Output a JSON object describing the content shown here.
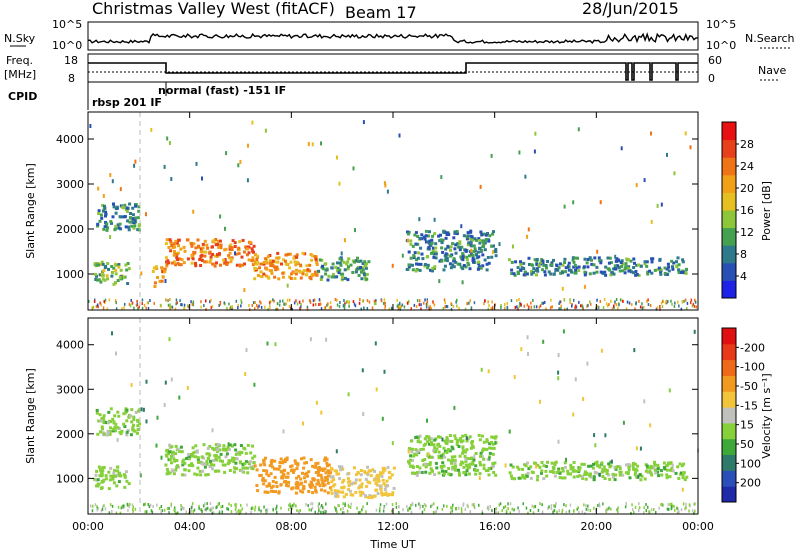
{
  "header": {
    "station": "Christmas Valley West (fitACF)",
    "beam": "Beam 17",
    "date": "28/Jun/2015"
  },
  "panels": {
    "nsky": {
      "left_label": "N.Sky",
      "left_ticks": [
        "10^5",
        "10^0"
      ],
      "right_ticks": [
        "10^5",
        "10^0"
      ],
      "right_label": "N.Search"
    },
    "freq": {
      "left_label": "Freq.",
      "left_unit": "[MHz]",
      "left_ticks": [
        "18",
        "8"
      ],
      "right_ticks": [
        "60",
        "0"
      ],
      "right_label": "Nave"
    },
    "cpid": {
      "label": "CPID",
      "segments": [
        "rbsp 201 IF",
        "normal (fast) -151 IF"
      ]
    }
  },
  "chart_data": [
    {
      "type": "heatmap",
      "title": "",
      "xlabel": "",
      "ylabel": "Slant Range [km]",
      "x_ticks": [
        "00:00",
        "04:00",
        "08:00",
        "12:00",
        "16:00",
        "20:00",
        "00:00"
      ],
      "y_ticks": [
        1000,
        2000,
        3000,
        4000
      ],
      "ylim": [
        200,
        4600
      ],
      "colorbar": {
        "label": "Power [dB]",
        "ticks": [
          "4",
          "8",
          "12",
          "16",
          "20",
          "24",
          "28"
        ],
        "colors": [
          "#1e22e6",
          "#2850b4",
          "#2f7a8a",
          "#45a050",
          "#8ec63a",
          "#e6c020",
          "#f2a018",
          "#ee7416",
          "#e8401a",
          "#e81010"
        ]
      },
      "regions": [
        {
          "t": [
            0.2,
            1.6
          ],
          "range": [
            800,
            1300
          ],
          "value": 12
        },
        {
          "t": [
            0.3,
            2.0
          ],
          "range": [
            2000,
            2600
          ],
          "value": 8
        },
        {
          "t": [
            2.5,
            3.0
          ],
          "range": [
            700,
            1200
          ],
          "value": 20
        },
        {
          "t": [
            3.0,
            6.5
          ],
          "range": [
            1200,
            1800
          ],
          "value": 22
        },
        {
          "t": [
            6.5,
            9.0
          ],
          "range": [
            900,
            1500
          ],
          "value": 20
        },
        {
          "t": [
            9.0,
            11.0
          ],
          "range": [
            900,
            1400
          ],
          "value": 10
        },
        {
          "t": [
            12.5,
            16.0
          ],
          "range": [
            1100,
            2000
          ],
          "value": 8
        },
        {
          "t": [
            16.5,
            23.5
          ],
          "range": [
            1000,
            1400
          ],
          "value": 8
        }
      ]
    },
    {
      "type": "heatmap",
      "title": "",
      "xlabel": "Time UT",
      "ylabel": "Slant Range [km]",
      "x_ticks": [
        "00:00",
        "04:00",
        "08:00",
        "12:00",
        "16:00",
        "20:00",
        "00:00"
      ],
      "y_ticks": [
        1000,
        2000,
        3000,
        4000
      ],
      "ylim": [
        200,
        4600
      ],
      "colorbar": {
        "label": "Velocity [m s⁻¹]",
        "ticks": [
          "200",
          "100",
          "50",
          "15",
          "-15",
          "-50",
          "-100",
          "-200"
        ],
        "colors": [
          "#1e2aa8",
          "#2a4fb8",
          "#2e7a6a",
          "#3fa83a",
          "#86d03a",
          "#c0c0bc",
          "#f2c43a",
          "#f29a20",
          "#ee6a18",
          "#e83a18",
          "#e01010"
        ]
      },
      "regions": [
        {
          "t": [
            0.2,
            1.6
          ],
          "range": [
            800,
            1300
          ],
          "value": 0
        },
        {
          "t": [
            0.3,
            2.0
          ],
          "range": [
            2000,
            2600
          ],
          "value": 0
        },
        {
          "t": [
            3.0,
            6.5
          ],
          "range": [
            1100,
            1800
          ],
          "value": 0
        },
        {
          "t": [
            6.5,
            9.5
          ],
          "range": [
            700,
            1500
          ],
          "value": -150
        },
        {
          "t": [
            9.5,
            12.0
          ],
          "range": [
            600,
            1300
          ],
          "value": -60
        },
        {
          "t": [
            12.5,
            16.0
          ],
          "range": [
            1100,
            2000
          ],
          "value": 0
        },
        {
          "t": [
            16.5,
            23.5
          ],
          "range": [
            1000,
            1400
          ],
          "value": 0
        }
      ]
    }
  ]
}
